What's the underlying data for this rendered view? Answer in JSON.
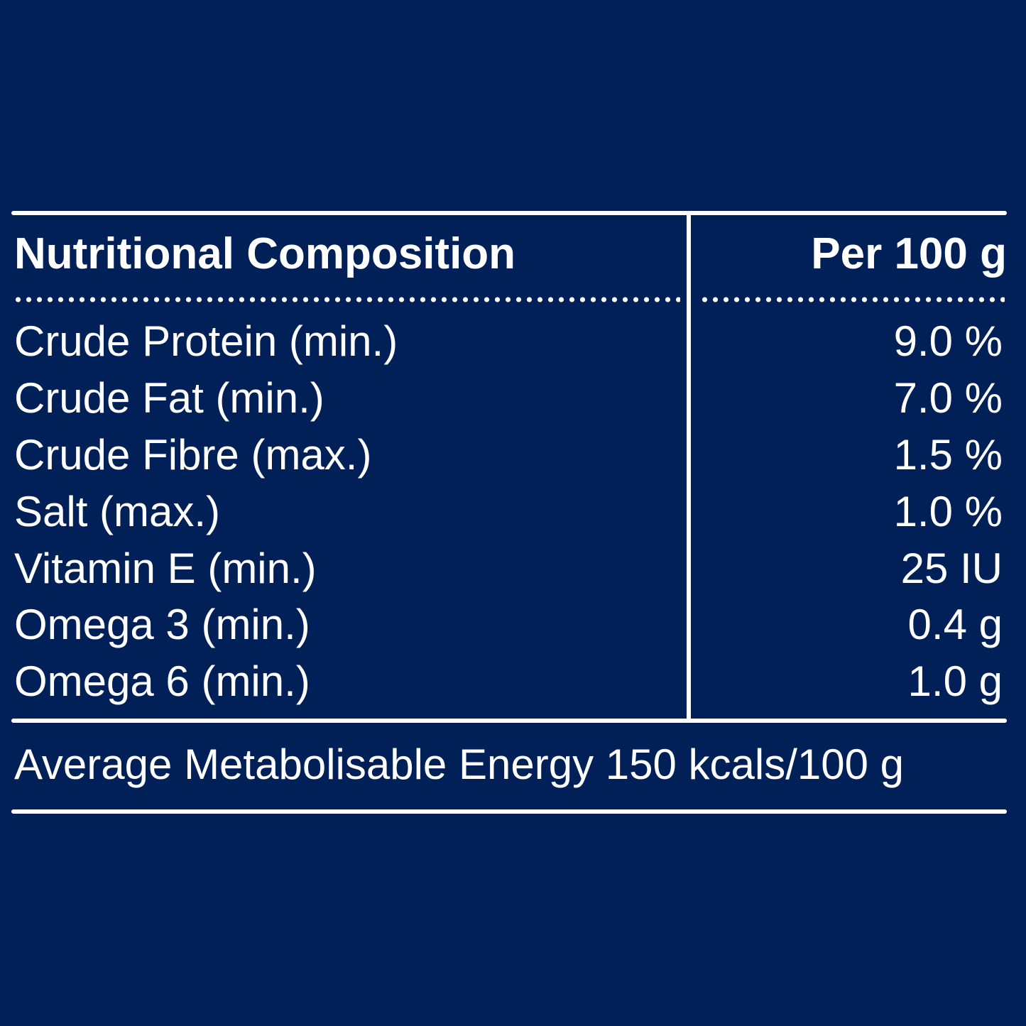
{
  "table": {
    "header": {
      "label": "Nutritional Composition",
      "value": "Per 100 g"
    },
    "rows": [
      {
        "label": "Crude Protein (min.)",
        "value": "9.0 %"
      },
      {
        "label": "Crude Fat (min.)",
        "value": "7.0 %"
      },
      {
        "label": "Crude Fibre (max.)",
        "value": "1.5 %"
      },
      {
        "label": "Salt (max.)",
        "value": "1.0 %"
      },
      {
        "label": "Vitamin E (min.)",
        "value": "25 IU"
      },
      {
        "label": "Omega 3 (min.)",
        "value": "0.4 g"
      },
      {
        "label": "Omega 6 (min.)",
        "value": "1.0 g"
      }
    ],
    "footer": "Average Metabolisable Energy 150 kcals/100 g"
  },
  "colors": {
    "background": "#022058",
    "text": "#ffffff"
  }
}
